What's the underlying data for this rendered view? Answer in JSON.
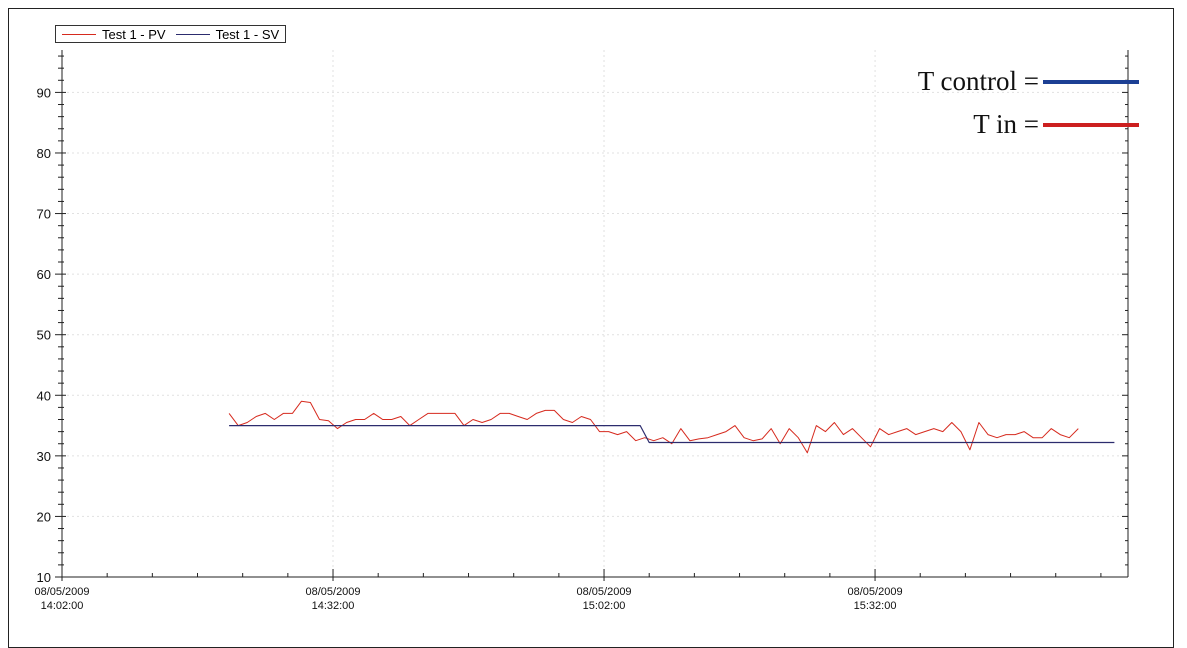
{
  "chart_data": {
    "type": "line",
    "ylim": [
      10,
      97
    ],
    "yticks": [
      10,
      20,
      30,
      40,
      50,
      60,
      70,
      80,
      90
    ],
    "xticks": [
      {
        "date": "08/05/2009",
        "time": "14:02:00",
        "minute": 0
      },
      {
        "date": "08/05/2009",
        "time": "14:32:00",
        "minute": 30
      },
      {
        "date": "08/05/2009",
        "time": "15:02:00",
        "minute": 60
      },
      {
        "date": "08/05/2009",
        "time": "15:32:00",
        "minute": 90
      }
    ],
    "xlim_minutes": [
      0,
      118
    ],
    "grid": true,
    "legend_position": "top-left",
    "series": [
      {
        "name": "Test 1 - PV",
        "color": "#d62a1e",
        "minutes": [
          18.5,
          19.5,
          20.5,
          21.5,
          22.5,
          23.5,
          24.5,
          25.5,
          26.5,
          27.5,
          28.5,
          29.5,
          30.5,
          31.5,
          32.5,
          33.5,
          34.5,
          35.5,
          36.5,
          37.5,
          38.5,
          39.5,
          40.5,
          41.5,
          42.5,
          43.5,
          44.5,
          45.5,
          46.5,
          47.5,
          48.5,
          49.5,
          50.5,
          51.5,
          52.5,
          53.5,
          54.5,
          55.5,
          56.5,
          57.5,
          58.5,
          59.5,
          60.5,
          61.5,
          62.5,
          63.5,
          64.5,
          65.5,
          66.5,
          67.5,
          68.5,
          69.5,
          70.5,
          71.5,
          72.5,
          73.5,
          74.5,
          75.5,
          76.5,
          77.5,
          78.5,
          79.5,
          80.5,
          81.5,
          82.5,
          83.5,
          84.5,
          85.5,
          86.5,
          87.5,
          88.5,
          89.5,
          90.5,
          91.5,
          92.5,
          93.5,
          94.5,
          95.5,
          96.5,
          97.5,
          98.5,
          99.5,
          100.5,
          101.5,
          102.5,
          103.5,
          104.5,
          105.5,
          106.5,
          107.5,
          108.5,
          109.5,
          110.5,
          111.5,
          112.5,
          113.5,
          114.5,
          115.5,
          116.5
        ],
        "values": [
          37.0,
          35.0,
          35.5,
          36.5,
          37.0,
          36.0,
          37.0,
          37.0,
          39.0,
          38.8,
          36.0,
          35.8,
          34.5,
          35.5,
          36.0,
          36.0,
          37.0,
          36.0,
          36.0,
          36.5,
          35.0,
          36.0,
          37.0,
          37.0,
          37.0,
          37.0,
          35.0,
          36.0,
          35.5,
          36.0,
          37.0,
          37.0,
          36.5,
          36.0,
          37.0,
          37.5,
          37.5,
          36.0,
          35.5,
          36.5,
          36.0,
          34.0,
          34.0,
          33.5,
          34.0,
          32.5,
          33.0,
          32.5,
          33.0,
          32.0,
          34.5,
          32.5,
          32.8,
          33.0,
          33.5,
          34.0,
          35.0,
          33.0,
          32.5,
          32.8,
          34.5,
          32.0,
          34.5,
          33.0,
          30.5,
          35.0,
          34.0,
          35.5,
          33.5,
          34.5,
          33.0,
          31.5,
          34.5,
          33.5,
          34.0,
          34.5,
          33.5,
          34.0,
          34.5,
          34.0,
          35.5,
          34.0,
          31.0,
          35.5,
          33.5,
          33.0,
          33.5,
          33.5,
          34.0,
          33.0,
          33.0,
          34.5,
          33.5,
          33.0,
          34.5
        ]
      },
      {
        "name": "Test 1 - SV",
        "color": "#2c2c6e",
        "minutes": [
          18.5,
          64.0,
          65.0,
          116.5
        ],
        "values": [
          35.0,
          35.0,
          32.2,
          32.2
        ]
      }
    ],
    "annotations": [
      {
        "text": "T control =",
        "color": "#1c3f94"
      },
      {
        "text": "T in =",
        "color": "#cc1f1f"
      }
    ]
  }
}
